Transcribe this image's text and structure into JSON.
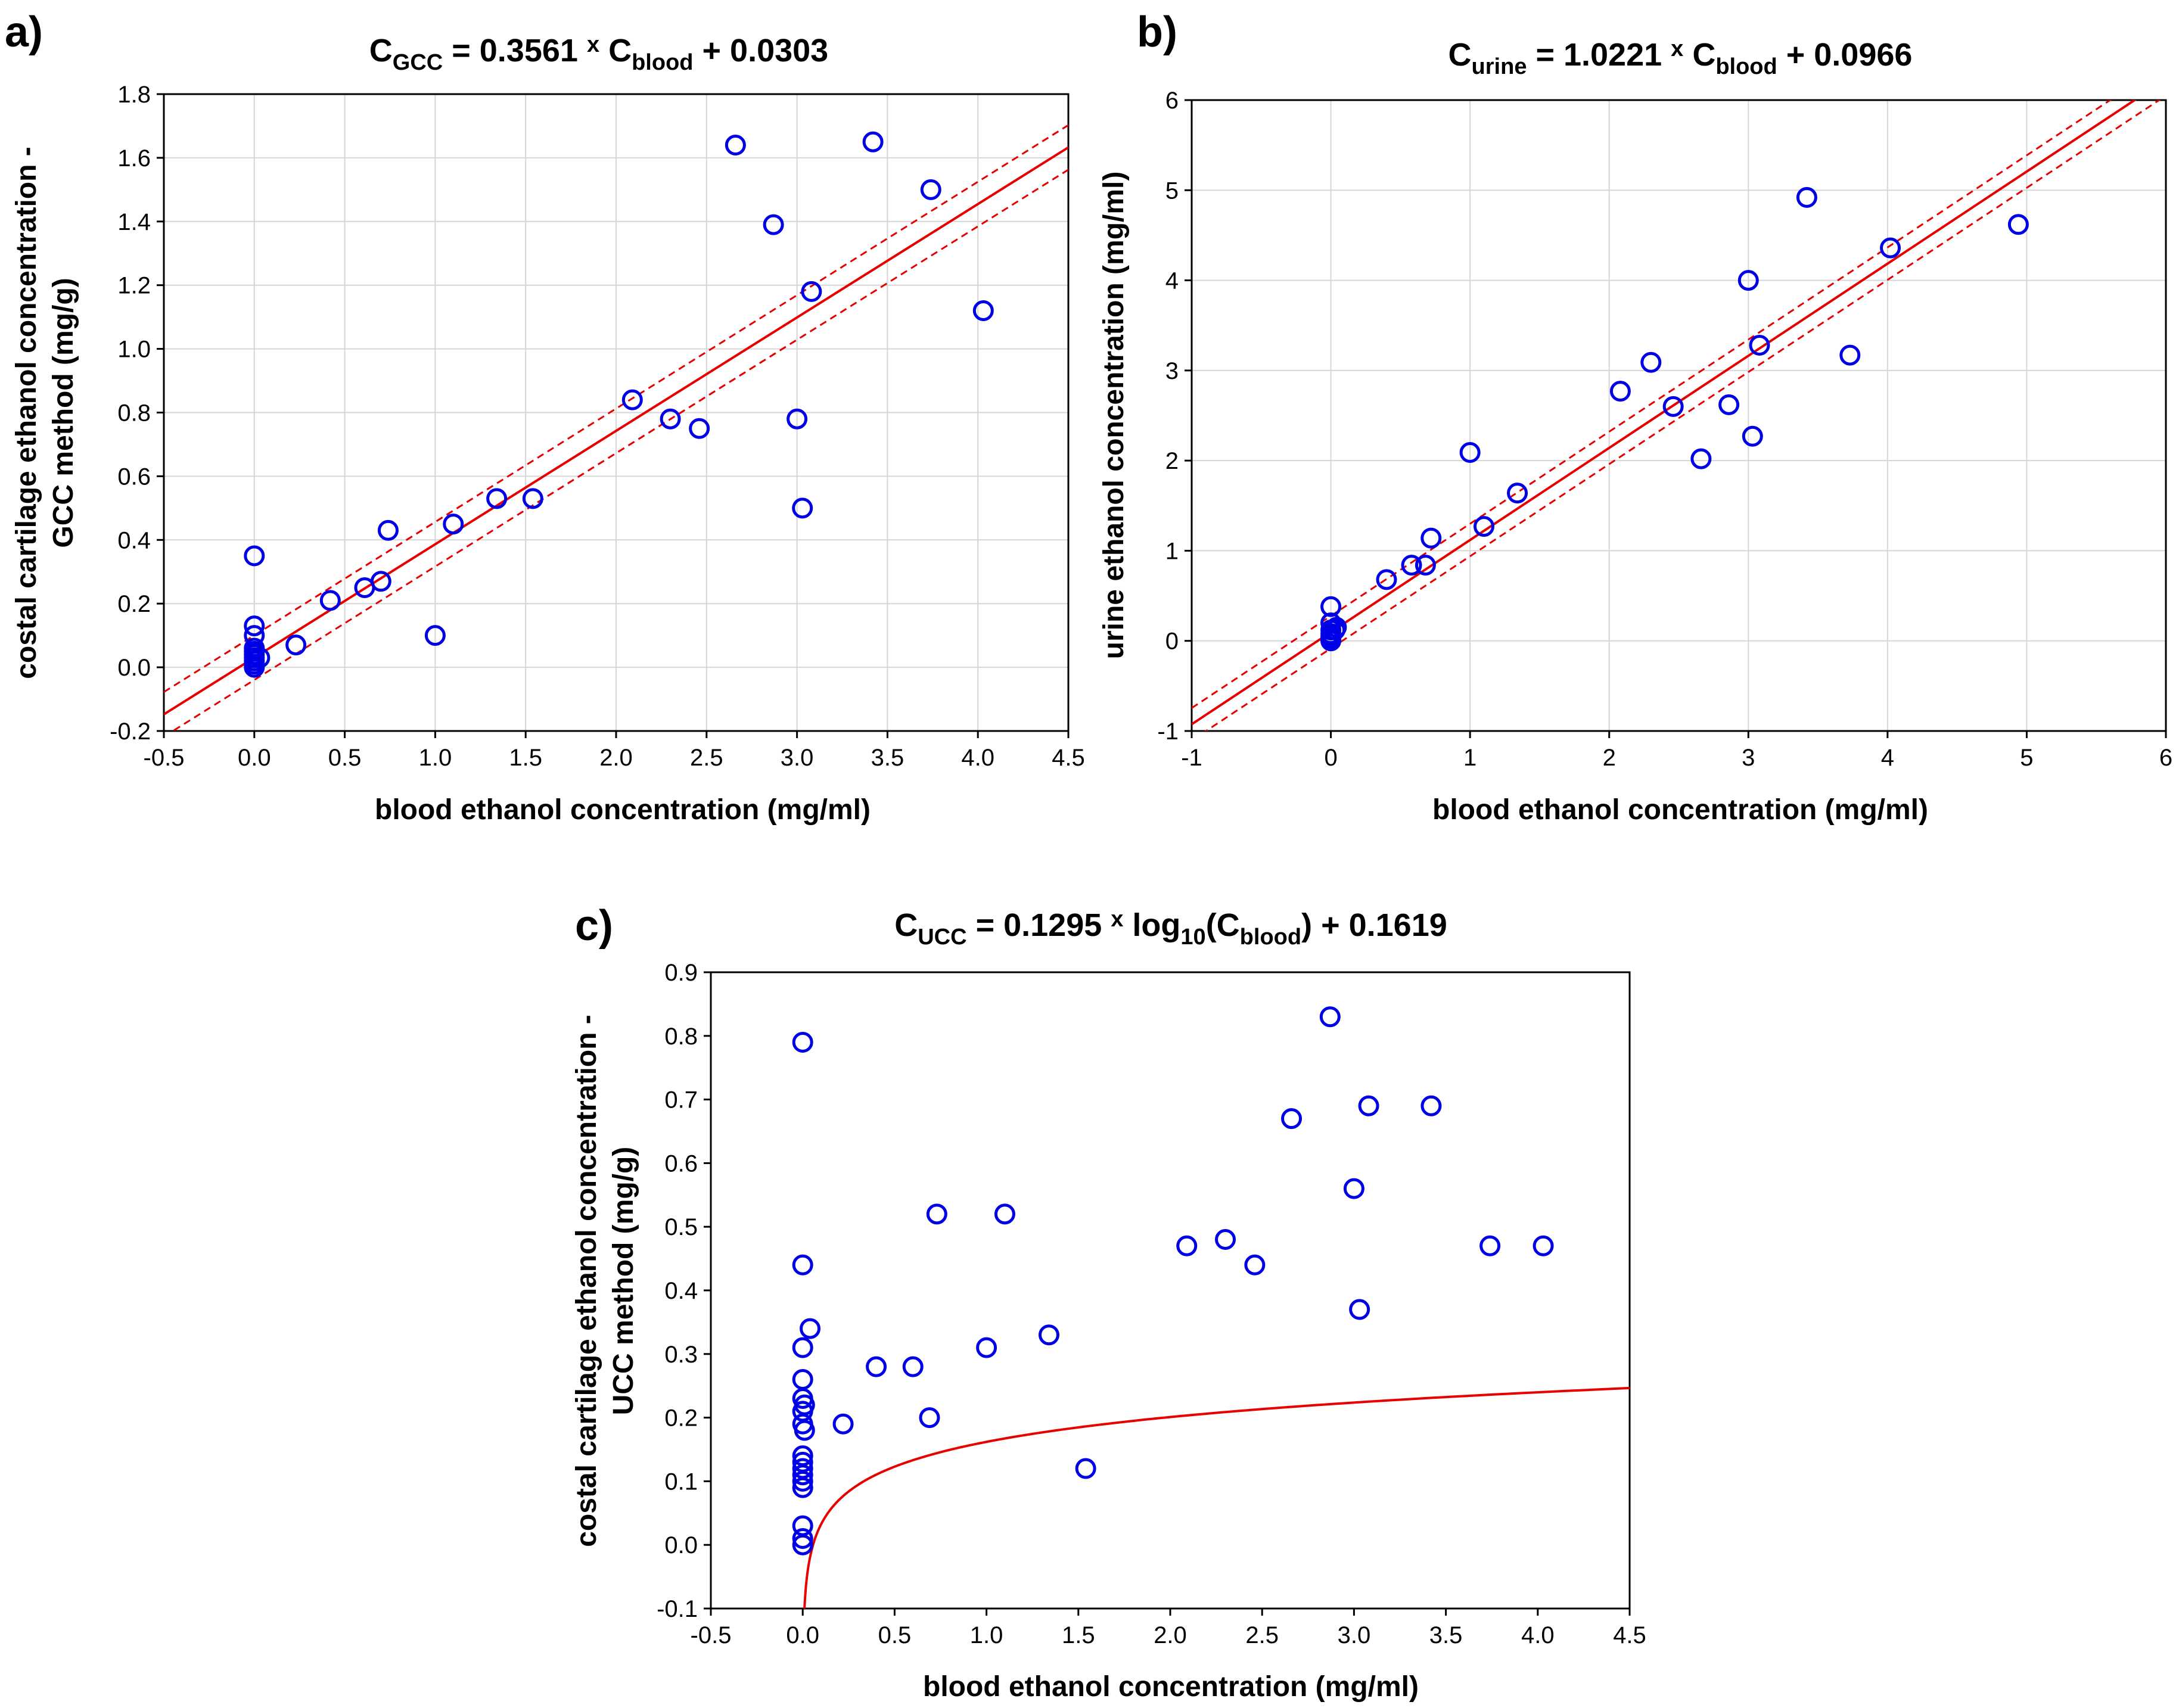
{
  "chart_data": [
    {
      "id": "a",
      "type": "scatter",
      "panel_label": "a)",
      "title": {
        "lhs": "C",
        "lhs_sub": "GCC",
        "eq": " = 0.3561 ",
        "times": "x",
        "rhs": " C",
        "rhs_sub": "blood",
        "tail": " + 0.0303"
      },
      "xlabel": "blood ethanol concentration (mg/ml)",
      "ylabel_lines": [
        "costal cartilage ethanol concentration -",
        "GCC method (mg/g)"
      ],
      "xlim": [
        -0.5,
        4.5
      ],
      "ylim": [
        -0.2,
        1.8
      ],
      "xticks": [
        -0.5,
        0.0,
        0.5,
        1.0,
        1.5,
        2.0,
        2.5,
        3.0,
        3.5,
        4.0,
        4.5
      ],
      "yticks": [
        -0.2,
        0.0,
        0.2,
        0.4,
        0.6,
        0.8,
        1.0,
        1.2,
        1.4,
        1.6,
        1.8
      ],
      "xtick_labels": [
        "-0.5",
        "0.0",
        "0.5",
        "1.0",
        "1.5",
        "2.0",
        "2.5",
        "3.0",
        "3.5",
        "4.0",
        "4.5"
      ],
      "ytick_labels": [
        "-0.2",
        "0.0",
        "0.2",
        "0.4",
        "0.6",
        "0.8",
        "1.0",
        "1.2",
        "1.4",
        "1.6",
        "1.8"
      ],
      "grid": true,
      "fit": {
        "model": "linear",
        "slope": 0.3561,
        "intercept": 0.0303,
        "ci_halfwidth": 0.07,
        "x_range": [
          -0.5,
          4.5
        ]
      },
      "points": [
        [
          0.0,
          0.35
        ],
        [
          0.0,
          0.13
        ],
        [
          0.0,
          0.1
        ],
        [
          0.0,
          0.06
        ],
        [
          0.0,
          0.05
        ],
        [
          0.0,
          0.04
        ],
        [
          0.0,
          0.03
        ],
        [
          0.0,
          0.02
        ],
        [
          0.0,
          0.01
        ],
        [
          0.0,
          0.0
        ],
        [
          0.03,
          0.03
        ],
        [
          0.23,
          0.07
        ],
        [
          0.42,
          0.21
        ],
        [
          0.61,
          0.25
        ],
        [
          0.7,
          0.27
        ],
        [
          0.74,
          0.43
        ],
        [
          1.0,
          0.1
        ],
        [
          1.1,
          0.45
        ],
        [
          1.34,
          0.53
        ],
        [
          1.54,
          0.53
        ],
        [
          2.09,
          0.84
        ],
        [
          2.3,
          0.78
        ],
        [
          2.46,
          0.75
        ],
        [
          2.66,
          1.64
        ],
        [
          2.87,
          1.39
        ],
        [
          3.0,
          0.78
        ],
        [
          3.03,
          0.5
        ],
        [
          3.08,
          1.18
        ],
        [
          3.42,
          1.65
        ],
        [
          3.74,
          1.5
        ],
        [
          4.03,
          1.12
        ]
      ]
    },
    {
      "id": "b",
      "type": "scatter",
      "panel_label": "b)",
      "title": {
        "lhs": "C",
        "lhs_sub": "urine",
        "eq": " = 1.0221 ",
        "times": "x",
        "rhs": " C",
        "rhs_sub": "blood",
        "tail": " + 0.0966"
      },
      "xlabel": "blood ethanol concentration (mg/ml)",
      "ylabel_lines": [
        "urine ethanol concentration (mg/ml)"
      ],
      "xlim": [
        -1,
        6
      ],
      "ylim": [
        -1,
        6
      ],
      "xticks": [
        -1,
        0,
        1,
        2,
        3,
        4,
        5,
        6
      ],
      "yticks": [
        -1,
        0,
        1,
        2,
        3,
        4,
        5,
        6
      ],
      "xtick_labels": [
        "-1",
        "0",
        "1",
        "2",
        "3",
        "4",
        "5",
        "6"
      ],
      "ytick_labels": [
        "-1",
        "0",
        "1",
        "2",
        "3",
        "4",
        "5",
        "6"
      ],
      "grid": true,
      "fit": {
        "model": "linear",
        "slope": 1.0221,
        "intercept": 0.0966,
        "ci_halfwidth": 0.18,
        "x_range": [
          -1,
          6
        ]
      },
      "points": [
        [
          0.0,
          0.38
        ],
        [
          0.0,
          0.2
        ],
        [
          0.0,
          0.12
        ],
        [
          0.0,
          0.08
        ],
        [
          0.0,
          0.05
        ],
        [
          0.0,
          0.02
        ],
        [
          0.0,
          0.0
        ],
        [
          0.03,
          0.12
        ],
        [
          0.04,
          0.15
        ],
        [
          0.4,
          0.68
        ],
        [
          0.58,
          0.84
        ],
        [
          0.68,
          0.84
        ],
        [
          0.72,
          1.14
        ],
        [
          1.0,
          2.09
        ],
        [
          1.1,
          1.27
        ],
        [
          1.34,
          1.64
        ],
        [
          2.08,
          2.77
        ],
        [
          2.3,
          3.09
        ],
        [
          2.46,
          2.6
        ],
        [
          2.66,
          2.02
        ],
        [
          2.86,
          2.62
        ],
        [
          3.0,
          4.0
        ],
        [
          3.03,
          2.27
        ],
        [
          3.08,
          3.28
        ],
        [
          3.42,
          4.92
        ],
        [
          3.73,
          3.17
        ],
        [
          4.02,
          4.36
        ],
        [
          4.94,
          4.62
        ]
      ]
    },
    {
      "id": "c",
      "type": "scatter",
      "panel_label": "c)",
      "title": {
        "lhs": "C",
        "lhs_sub": "UCC",
        "eq": " = 0.1295 ",
        "times": "x",
        "rhs": " log",
        "rhs_sub": "10",
        "tail_pre": "(C",
        "tail_sub": "blood",
        "tail": ") + 0.1619"
      },
      "xlabel": "blood ethanol concentration (mg/ml)",
      "ylabel_lines": [
        "costal cartilage ethanol concentration -",
        "UCC method (mg/g)"
      ],
      "xlim": [
        -0.5,
        4.5
      ],
      "ylim": [
        -0.1,
        0.9
      ],
      "xticks": [
        -0.5,
        0.0,
        0.5,
        1.0,
        1.5,
        2.0,
        2.5,
        3.0,
        3.5,
        4.0,
        4.5
      ],
      "yticks": [
        -0.1,
        0.0,
        0.1,
        0.2,
        0.3,
        0.4,
        0.5,
        0.6,
        0.7,
        0.8,
        0.9
      ],
      "xtick_labels": [
        "-0.5",
        "0.0",
        "0.5",
        "1.0",
        "1.5",
        "2.0",
        "2.5",
        "3.0",
        "3.5",
        "4.0",
        "4.5"
      ],
      "ytick_labels": [
        "-0.1",
        "0.0",
        "0.1",
        "0.2",
        "0.3",
        "0.4",
        "0.5",
        "0.6",
        "0.7",
        "0.8",
        "0.9"
      ],
      "grid": false,
      "fit": {
        "model": "log10",
        "a": 0.1295,
        "b": 0.1619,
        "ci_halfwidth": 0,
        "x_range": [
          0.0015,
          4.5
        ]
      },
      "points": [
        [
          0.0,
          0.79
        ],
        [
          0.0,
          0.44
        ],
        [
          0.0,
          0.31
        ],
        [
          0.0,
          0.26
        ],
        [
          0.0,
          0.23
        ],
        [
          0.0,
          0.21
        ],
        [
          0.0,
          0.19
        ],
        [
          0.0,
          0.14
        ],
        [
          0.0,
          0.13
        ],
        [
          0.0,
          0.12
        ],
        [
          0.0,
          0.11
        ],
        [
          0.0,
          0.1
        ],
        [
          0.0,
          0.09
        ],
        [
          0.0,
          0.03
        ],
        [
          0.0,
          0.01
        ],
        [
          0.0,
          0.0
        ],
        [
          0.01,
          0.18
        ],
        [
          0.01,
          0.22
        ],
        [
          0.04,
          0.34
        ],
        [
          0.22,
          0.19
        ],
        [
          0.4,
          0.28
        ],
        [
          0.6,
          0.28
        ],
        [
          0.69,
          0.2
        ],
        [
          0.73,
          0.52
        ],
        [
          1.0,
          0.31
        ],
        [
          1.1,
          0.52
        ],
        [
          1.34,
          0.33
        ],
        [
          1.54,
          0.12
        ],
        [
          2.09,
          0.47
        ],
        [
          2.3,
          0.48
        ],
        [
          2.46,
          0.44
        ],
        [
          2.66,
          0.67
        ],
        [
          2.87,
          0.83
        ],
        [
          3.0,
          0.56
        ],
        [
          3.03,
          0.37
        ],
        [
          3.08,
          0.69
        ],
        [
          3.42,
          0.69
        ],
        [
          3.74,
          0.47
        ],
        [
          4.03,
          0.47
        ]
      ]
    }
  ]
}
